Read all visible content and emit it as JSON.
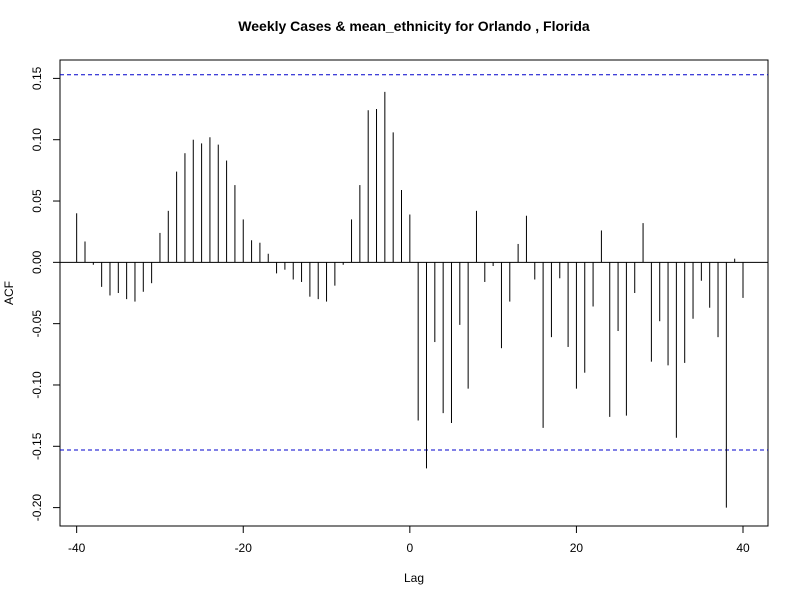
{
  "chart_data": {
    "type": "bar",
    "title": "Weekly Cases & mean_ethnicity for Orlando , Florida",
    "xlabel": "Lag",
    "ylabel": "ACF",
    "xlim": [
      -42,
      43
    ],
    "ylim": [
      -0.215,
      0.165
    ],
    "x_ticks": [
      -40,
      -20,
      0,
      20,
      40
    ],
    "x_tick_labels": [
      "-40",
      "-20",
      "0",
      "20",
      "40"
    ],
    "y_ticks": [
      -0.2,
      -0.15,
      -0.1,
      -0.05,
      0.0,
      0.05,
      0.1,
      0.15
    ],
    "y_tick_labels": [
      "-0.20",
      "-0.15",
      "-0.10",
      "-0.05",
      "0.00",
      "0.05",
      "0.10",
      "0.15"
    ],
    "confidence_bound": 0.153,
    "confidence_color": "#0000cc",
    "bar_color": "#000000",
    "grid": false,
    "x": [
      -40,
      -39,
      -38,
      -37,
      -36,
      -35,
      -34,
      -33,
      -32,
      -31,
      -30,
      -29,
      -28,
      -27,
      -26,
      -25,
      -24,
      -23,
      -22,
      -21,
      -20,
      -19,
      -18,
      -17,
      -16,
      -15,
      -14,
      -13,
      -12,
      -11,
      -10,
      -9,
      -8,
      -7,
      -6,
      -5,
      -4,
      -3,
      -2,
      -1,
      0,
      1,
      2,
      3,
      4,
      5,
      6,
      7,
      8,
      9,
      10,
      11,
      12,
      13,
      14,
      15,
      16,
      17,
      18,
      19,
      20,
      21,
      22,
      23,
      24,
      25,
      26,
      27,
      28,
      29,
      30,
      31,
      32,
      33,
      34,
      35,
      36,
      37,
      38,
      39,
      40
    ],
    "values": [
      0.04,
      0.017,
      -0.002,
      -0.02,
      -0.027,
      -0.025,
      -0.03,
      -0.032,
      -0.024,
      -0.017,
      0.024,
      0.042,
      0.074,
      0.089,
      0.1,
      0.097,
      0.102,
      0.096,
      0.083,
      0.063,
      0.035,
      0.018,
      0.016,
      0.007,
      -0.009,
      -0.006,
      -0.014,
      -0.016,
      -0.028,
      -0.03,
      -0.032,
      -0.019,
      -0.002,
      0.035,
      0.063,
      0.124,
      0.125,
      0.139,
      0.106,
      0.059,
      0.039,
      -0.129,
      -0.168,
      -0.065,
      -0.123,
      -0.131,
      -0.051,
      -0.103,
      0.042,
      -0.016,
      -0.003,
      -0.07,
      -0.032,
      0.015,
      0.038,
      -0.014,
      -0.135,
      -0.061,
      -0.013,
      -0.069,
      -0.103,
      -0.09,
      -0.036,
      0.026,
      -0.126,
      -0.056,
      -0.125,
      -0.025,
      0.032,
      -0.081,
      -0.048,
      -0.084,
      -0.143,
      -0.082,
      -0.046,
      -0.015,
      -0.037,
      -0.061,
      -0.2,
      0.003,
      -0.029
    ]
  }
}
